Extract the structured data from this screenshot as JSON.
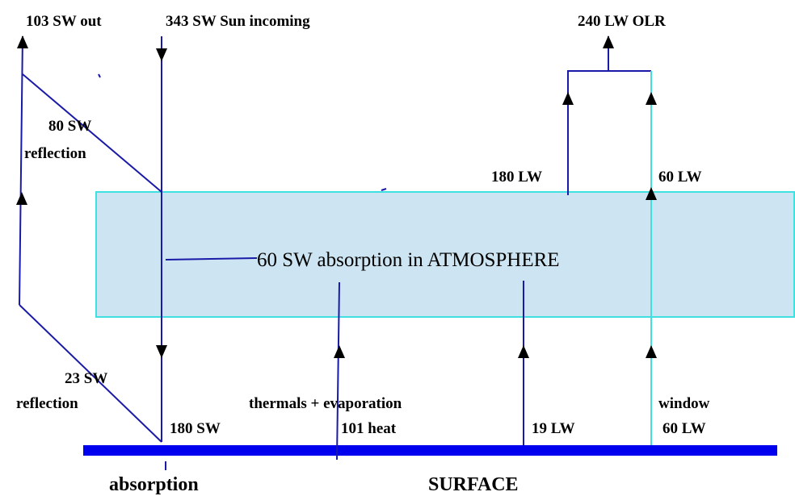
{
  "labels": {
    "sw_out": "103 SW out",
    "sun_incoming": "343 SW Sun  incoming",
    "olr": "240 LW OLR",
    "reflection_top_value": "80   SW",
    "reflection_top": "reflection",
    "lw_180": "180 LW",
    "lw_60": "60 LW",
    "atmosphere": "60 SW absorption in ATMOSPHERE",
    "reflection_bottom_value": "23   SW",
    "reflection_bottom": "reflection",
    "thermals": "thermals +  evaporation",
    "heat": "101 heat",
    "sw_180": "180 SW",
    "lw_19": "19 LW",
    "window": "window",
    "window_lw": "60 LW",
    "absorption": "absorption",
    "surface": "SURFACE"
  }
}
